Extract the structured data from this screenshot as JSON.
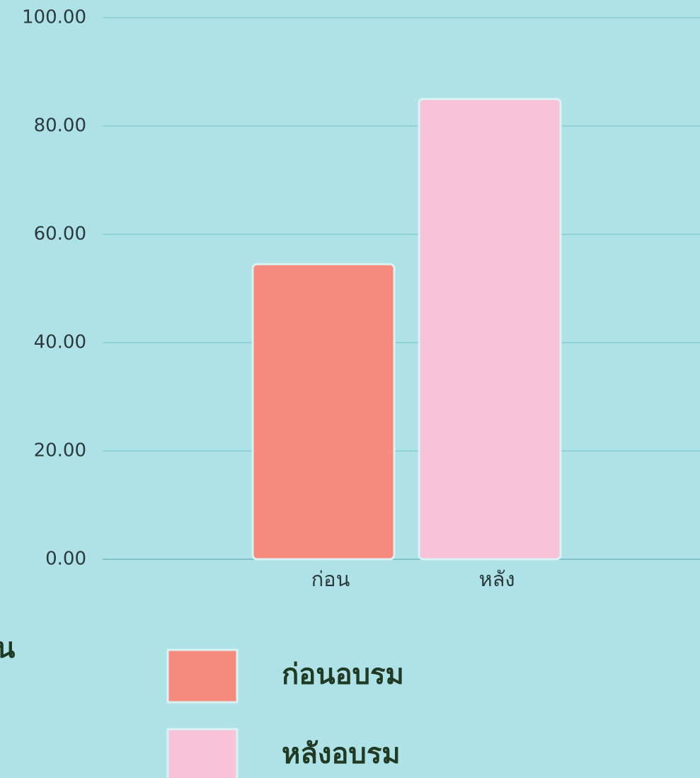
{
  "chart_data": {
    "type": "bar",
    "categories": [
      "ก่อน",
      "หลัง"
    ],
    "series": [
      {
        "name": "ก่อนอบรม",
        "color": "#f68a7c",
        "values": [
          54.5,
          null
        ]
      },
      {
        "name": "หลังอบรม",
        "color": "#f9c3d7",
        "values": [
          null,
          85
        ]
      }
    ],
    "ylim": [
      0,
      100
    ],
    "yticks": [
      {
        "value": 0,
        "label": "0.00"
      },
      {
        "value": 20,
        "label": "20.00"
      },
      {
        "value": 40,
        "label": "40.00"
      },
      {
        "value": 60,
        "label": "60.00"
      },
      {
        "value": 80,
        "label": "80.00"
      },
      {
        "value": 100,
        "label": "100.00"
      }
    ],
    "grid": true,
    "annotation": "น"
  }
}
